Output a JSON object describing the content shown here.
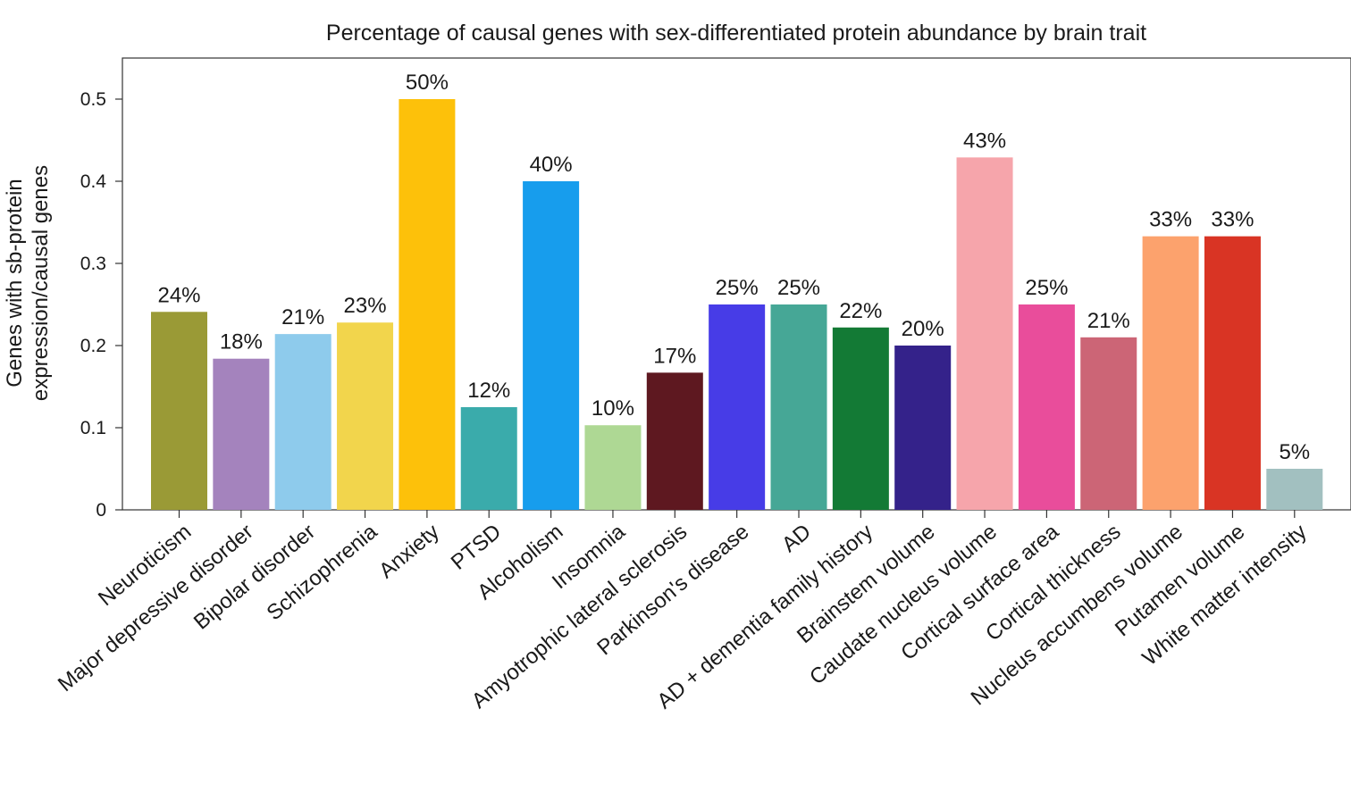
{
  "chart_data": {
    "type": "bar",
    "title": "Percentage of causal genes with sex-differentiated protein abundance by brain trait",
    "ylabel_lines": [
      "Genes with sb-protein",
      "expression/causal genes"
    ],
    "xlabel": "",
    "ylim": [
      0,
      0.55
    ],
    "yticks": [
      0,
      0.1,
      0.2,
      0.3,
      0.4,
      0.5
    ],
    "ytick_labels": [
      "0",
      "0.1",
      "0.2",
      "0.3",
      "0.4",
      "0.5"
    ],
    "grid": false,
    "categories": [
      "Neuroticism",
      "Major depressive disorder",
      "Bipolar disorder",
      "Schizophrenia",
      "Anxiety",
      "PTSD",
      "Alcoholism",
      "Insomnia",
      "Amyotrophic lateral sclerosis",
      "Parkinson's disease",
      "AD",
      "AD + dementia family history",
      "Brainstem volume",
      "Caudate nucleus volume",
      "Cortical surface area",
      "Cortical thickness",
      "Nucleus accumbens volume",
      "Putamen volume",
      "White matter intensity"
    ],
    "values": [
      0.241,
      0.184,
      0.214,
      0.228,
      0.5,
      0.125,
      0.4,
      0.103,
      0.167,
      0.25,
      0.25,
      0.222,
      0.2,
      0.429,
      0.25,
      0.21,
      0.333,
      0.333,
      0.05
    ],
    "data_labels": [
      "24%",
      "18%",
      "21%",
      "23%",
      "50%",
      "12%",
      "40%",
      "10%",
      "17%",
      "25%",
      "25%",
      "22%",
      "20%",
      "43%",
      "25%",
      "21%",
      "33%",
      "33%",
      "5%"
    ],
    "colors": [
      "#9a9a36",
      "#a483bd",
      "#8ecbec",
      "#f2d54c",
      "#fdc10a",
      "#3aabab",
      "#179ded",
      "#aed894",
      "#5e1820",
      "#473ce7",
      "#46a796",
      "#137a35",
      "#34228a",
      "#f6a5ab",
      "#e94d9b",
      "#cc6576",
      "#fca26d",
      "#d93424",
      "#a2c0c0"
    ]
  }
}
